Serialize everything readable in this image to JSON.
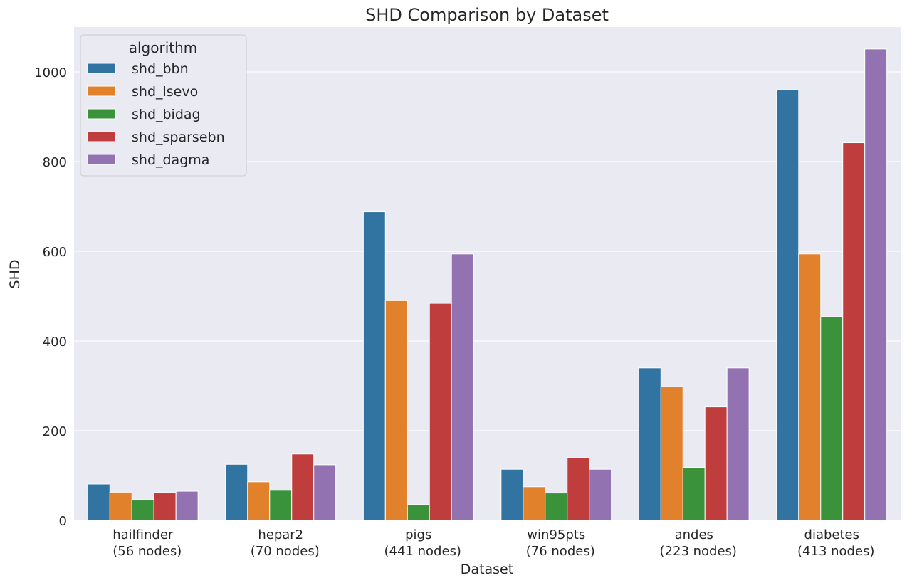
{
  "chart_data": {
    "type": "bar",
    "title": "SHD Comparison by Dataset",
    "xlabel": "Dataset",
    "ylabel": "SHD",
    "ylim": [
      0,
      1100
    ],
    "yticks": [
      0,
      200,
      400,
      600,
      800,
      1000
    ],
    "grid": true,
    "legend": {
      "title": "algorithm",
      "placement": "top-left"
    },
    "categories": [
      {
        "name": "hailfinder",
        "sub": "(56 nodes)"
      },
      {
        "name": "hepar2",
        "sub": "(70 nodes)"
      },
      {
        "name": "pigs",
        "sub": "(441 nodes)"
      },
      {
        "name": "win95pts",
        "sub": "(76 nodes)"
      },
      {
        "name": "andes",
        "sub": "(223 nodes)"
      },
      {
        "name": "diabetes",
        "sub": "(413 nodes)"
      }
    ],
    "series": [
      {
        "name": "shd_bbn",
        "color": "#3274a1",
        "values": [
          81,
          125,
          688,
          114,
          340,
          960
        ]
      },
      {
        "name": "shd_lsevo",
        "color": "#e1812c",
        "values": [
          63,
          86,
          490,
          75,
          298,
          594
        ]
      },
      {
        "name": "shd_bidag",
        "color": "#3a923a",
        "values": [
          46,
          67,
          35,
          61,
          118,
          454
        ]
      },
      {
        "name": "shd_sparsebn",
        "color": "#c03d3e",
        "values": [
          62,
          148,
          484,
          140,
          253,
          842
        ]
      },
      {
        "name": "shd_dagma",
        "color": "#9372b2",
        "values": [
          65,
          124,
          594,
          114,
          340,
          1051
        ]
      }
    ]
  }
}
